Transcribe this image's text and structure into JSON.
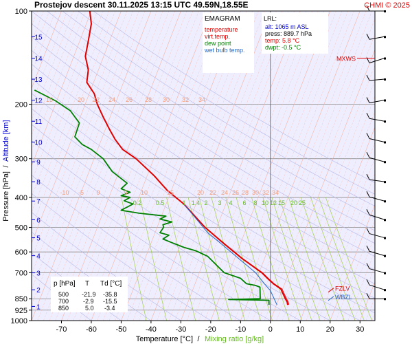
{
  "header": {
    "title": "Prostejov   descent   30.11.2025 13:15 UTC  49.59N,18.55E",
    "copyright": "CHMI © 2025"
  },
  "colors": {
    "temperature": "#e00000",
    "virt_temp": "#e00000",
    "dew_point": "#008000",
    "wet_bulb": "#2266cc",
    "altitude": "#0000cc",
    "mixing": "#66bb22",
    "isotherm_label": "#f0a080"
  },
  "chart_data": {
    "type": "line",
    "title": "EMAGRAM",
    "xlabel": "Temperature [°C]",
    "xlabel_sep": "/",
    "xlabel2": "Mixing ratio [g/kg]",
    "ylabel": "Pressure [hPa]",
    "ylabel_sep": "/",
    "ylabel2": "Altitude [km]",
    "xlim": [
      -80,
      35
    ],
    "ylim": [
      1000,
      100
    ],
    "yscale": "log",
    "x_ticks": [
      -70,
      -60,
      -50,
      -40,
      -30,
      -20,
      -10,
      0,
      10,
      20,
      30
    ],
    "pressure_ticks": [
      100,
      200,
      300,
      400,
      500,
      600,
      700,
      850,
      925,
      1000
    ],
    "altitude_ticks": [
      {
        "km": "1",
        "p": 900
      },
      {
        "km": "2",
        "p": 795
      },
      {
        "km": "3",
        "p": 701
      },
      {
        "km": "4",
        "p": 617
      },
      {
        "km": "5",
        "p": 540
      },
      {
        "km": "6",
        "p": 472
      },
      {
        "km": "7",
        "p": 411
      },
      {
        "km": "8",
        "p": 356
      },
      {
        "km": "9",
        "p": 307
      },
      {
        "km": "10",
        "p": 265
      },
      {
        "km": "11",
        "p": 227
      },
      {
        "km": "12",
        "p": 194
      },
      {
        "km": "13",
        "p": 166
      },
      {
        "km": "14",
        "p": 142
      },
      {
        "km": "15",
        "p": 121
      }
    ],
    "legend": [
      {
        "label": "temperature",
        "color": "#e00000"
      },
      {
        "label": "virt.temp.",
        "color": "#e00000"
      },
      {
        "label": "dew point",
        "color": "#008000"
      },
      {
        "label": "wet bulb temp.",
        "color": "#2266cc"
      }
    ],
    "lrl": {
      "title": "LRL:",
      "alt": "alt: 1065 m ASL",
      "press": "press: 889.7 hPa",
      "temp": "temp: 5.8 °C",
      "dwpt": "dwpt: -0.5 °C"
    },
    "table": {
      "headers": [
        "p [hPa]",
        "T",
        "Td [°C]"
      ],
      "rows": [
        [
          "500",
          "-21.9",
          "-35.8"
        ],
        [
          "700",
          "-2.9",
          "-15.5"
        ],
        [
          "850",
          "5.0",
          "-3.4"
        ]
      ]
    },
    "isotherm_labels_upper": [
      "15",
      "20",
      "22",
      "24",
      "26",
      "28",
      "30",
      "32",
      "34"
    ],
    "isotherm_labels_lower": [
      "-10",
      "-5",
      "0",
      "5",
      "10",
      "15",
      "20",
      "22",
      "24",
      "26",
      "28",
      "30",
      "32",
      "34"
    ],
    "mixing_labels": [
      "0.2",
      "0.5",
      "1",
      "1.4",
      "2",
      "3",
      "4",
      "6",
      "8",
      "10",
      "12",
      "15",
      "20",
      "25"
    ],
    "level_markers": [
      {
        "label": "MXWS",
        "p": 142,
        "color": "#e00000"
      },
      {
        "label": "FZLV",
        "p": 785,
        "color": "#e00000"
      },
      {
        "label": "WBZL",
        "p": 835,
        "color": "#2266cc"
      }
    ],
    "series": [
      {
        "name": "temperature",
        "color": "#e00000",
        "points": [
          [
            -60.5,
            100
          ],
          [
            -60,
            110
          ],
          [
            -61,
            125
          ],
          [
            -62,
            140
          ],
          [
            -61,
            155
          ],
          [
            -61.5,
            170
          ],
          [
            -59,
            185
          ],
          [
            -58,
            200
          ],
          [
            -56,
            220
          ],
          [
            -54,
            240
          ],
          [
            -52,
            260
          ],
          [
            -49.5,
            280
          ],
          [
            -45,
            300
          ],
          [
            -39,
            340
          ],
          [
            -34.5,
            380
          ],
          [
            -29,
            420
          ],
          [
            -21.9,
            500
          ],
          [
            -15,
            570
          ],
          [
            -9.5,
            630
          ],
          [
            -2.9,
            700
          ],
          [
            -1,
            730
          ],
          [
            1,
            760
          ],
          [
            3.5,
            790
          ],
          [
            5,
            850
          ],
          [
            5.6,
            870
          ],
          [
            5.8,
            889.7
          ]
        ]
      },
      {
        "name": "virt.temp.",
        "color": "#e00000",
        "points": [
          [
            -60.5,
            100
          ],
          [
            -60,
            110
          ],
          [
            -61,
            125
          ],
          [
            -62,
            140
          ],
          [
            -61,
            155
          ],
          [
            -61.5,
            170
          ],
          [
            -59,
            185
          ],
          [
            -58,
            200
          ],
          [
            -56,
            220
          ],
          [
            -54,
            240
          ],
          [
            -52,
            260
          ],
          [
            -49.5,
            280
          ],
          [
            -45,
            300
          ],
          [
            -39,
            340
          ],
          [
            -34.5,
            380
          ],
          [
            -29,
            420
          ],
          [
            -21.8,
            500
          ],
          [
            -14.8,
            570
          ],
          [
            -9.3,
            630
          ],
          [
            -2.6,
            700
          ],
          [
            -0.7,
            730
          ],
          [
            1.3,
            760
          ],
          [
            3.9,
            790
          ],
          [
            5.4,
            850
          ],
          [
            6,
            870
          ],
          [
            6.2,
            889.7
          ]
        ]
      },
      {
        "name": "dew point",
        "color": "#008000",
        "points": [
          [
            -79,
            180
          ],
          [
            -72,
            195
          ],
          [
            -67,
            210
          ],
          [
            -64,
            230
          ],
          [
            -65.5,
            255
          ],
          [
            -63,
            270
          ],
          [
            -60,
            280
          ],
          [
            -56,
            300
          ],
          [
            -53,
            330
          ],
          [
            -48,
            360
          ],
          [
            -50,
            375
          ],
          [
            -47,
            385
          ],
          [
            -50,
            395
          ],
          [
            -47,
            400
          ],
          [
            -49,
            410
          ],
          [
            -46,
            420
          ],
          [
            -50,
            440
          ],
          [
            -44,
            450
          ],
          [
            -35,
            460
          ],
          [
            -37,
            470
          ],
          [
            -33,
            480
          ],
          [
            -36,
            490
          ],
          [
            -35.8,
            500
          ],
          [
            -37,
            520
          ],
          [
            -34,
            530
          ],
          [
            -36,
            545
          ],
          [
            -33,
            560
          ],
          [
            -29,
            580
          ],
          [
            -25,
            595
          ],
          [
            -21,
            620
          ],
          [
            -15.5,
            700
          ],
          [
            -10,
            730
          ],
          [
            -8,
            760
          ],
          [
            -5,
            770
          ],
          [
            -3.5,
            780
          ],
          [
            -3.4,
            850
          ],
          [
            -14,
            855
          ],
          [
            -4,
            858
          ],
          [
            -0.5,
            860
          ],
          [
            -0.5,
            889.7
          ]
        ]
      },
      {
        "name": "wet bulb temp.",
        "color": "#2266cc",
        "points": [
          [
            -29,
            420
          ],
          [
            -24,
            480
          ],
          [
            -21,
            520
          ],
          [
            -16,
            570
          ],
          [
            -9,
            650
          ],
          [
            -5,
            700
          ],
          [
            -2,
            760
          ],
          [
            0,
            800
          ],
          [
            1,
            840
          ],
          [
            2.2,
            889.7
          ]
        ]
      }
    ]
  }
}
